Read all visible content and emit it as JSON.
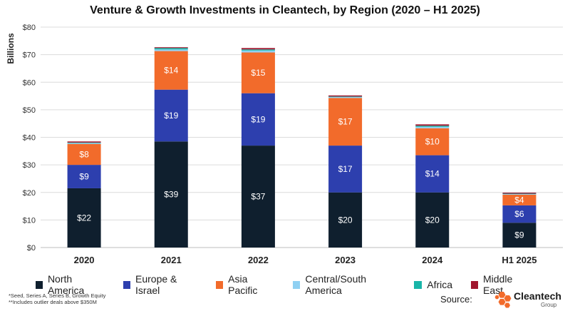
{
  "chart_data": {
    "type": "bar",
    "stacked": true,
    "title": "Venture & Growth Investments in Cleantech, by Region (2020 – H1 2025)",
    "ylabel": "Billions",
    "xlabel": "",
    "ylim": [
      0,
      80
    ],
    "y_ticks": [
      0,
      10,
      20,
      30,
      40,
      50,
      60,
      70,
      80
    ],
    "y_tick_labels": [
      "$0",
      "$10",
      "$20",
      "$30",
      "$40",
      "$50",
      "$60",
      "$70",
      "$80"
    ],
    "grid": true,
    "legend_position": "bottom",
    "categories": [
      "2020",
      "2021",
      "2022",
      "2023",
      "2024",
      "H1 2025"
    ],
    "series": [
      {
        "name": "North America",
        "color": "#0f1f2e",
        "label_color": "#ffffff",
        "values": [
          21.5,
          38.5,
          37.0,
          20.0,
          20.0,
          9.0
        ],
        "labels": [
          "$22",
          "$39",
          "$37",
          "$20",
          "$20",
          "$9"
        ]
      },
      {
        "name": "Europe & Israel",
        "color": "#2d3fae",
        "label_color": "#ffffff",
        "values": [
          8.5,
          18.8,
          19.0,
          17.0,
          13.5,
          6.3
        ],
        "labels": [
          "$9",
          "$19",
          "$19",
          "$17",
          "$14",
          "$6"
        ]
      },
      {
        "name": "Asia Pacific",
        "color": "#f26b2b",
        "label_color": "#ffffff",
        "values": [
          7.6,
          14.0,
          14.8,
          17.3,
          9.8,
          3.9
        ],
        "labels": [
          "$8",
          "$14",
          "$15",
          "$17",
          "$10",
          "$4"
        ]
      },
      {
        "name": "Central/South America",
        "color": "#8fd0f2",
        "label_color": "#222222",
        "values": [
          0.3,
          0.6,
          0.7,
          0.3,
          0.5,
          0.2
        ],
        "labels": [
          "",
          "",
          "",
          "",
          "",
          ""
        ]
      },
      {
        "name": "Africa",
        "color": "#19b5a8",
        "label_color": "#222222",
        "values": [
          0.2,
          0.5,
          0.4,
          0.2,
          0.4,
          0.15
        ],
        "labels": [
          "",
          "",
          "",
          "",
          "",
          ""
        ]
      },
      {
        "name": "Middle East",
        "color": "#a0162e",
        "label_color": "#ffffff",
        "values": [
          0.4,
          0.3,
          0.5,
          0.4,
          0.5,
          0.35
        ],
        "labels": [
          "",
          "",
          "",
          "",
          "",
          ""
        ]
      }
    ]
  },
  "footnotes": {
    "line1": "*Seed, Series A, Series B, Growth Equity",
    "line2": "**Includes outlier deals above $350M"
  },
  "source": {
    "label": "Source:",
    "brand": "Cleantech",
    "brand_sub": "Group"
  }
}
